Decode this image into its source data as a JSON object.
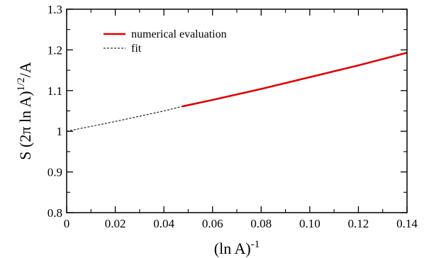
{
  "chart_data": {
    "type": "line",
    "title": "",
    "xlabel": {
      "base": "(ln A)",
      "sup": "-1"
    },
    "ylabel": {
      "pre": "S (2π ln A)",
      "sup": "1/2",
      "post": "/A"
    },
    "xlim": [
      0,
      0.14
    ],
    "ylim": [
      0.8,
      1.3
    ],
    "xticks": [
      "0",
      "0.02",
      "0.04",
      "0.06",
      "0.08",
      "0.10",
      "0.12",
      "0.14"
    ],
    "yticks": [
      "0.8",
      "0.9",
      "1",
      "1.1",
      "1.2",
      "1.3"
    ],
    "grid": false,
    "legend": "top-left",
    "series": [
      {
        "name": "numerical evaluation",
        "color": "#e00000",
        "style": "solid",
        "x": [
          0.0475,
          0.06,
          0.08,
          0.1,
          0.12,
          0.14
        ],
        "y": [
          1.061,
          1.077,
          1.104,
          1.133,
          1.162,
          1.193
        ]
      },
      {
        "name": "fit",
        "color": "#000000",
        "style": "dashed",
        "x": [
          0.0,
          0.01,
          0.02,
          0.03,
          0.04,
          0.0475,
          0.06,
          0.08,
          0.1,
          0.12,
          0.14
        ],
        "y": [
          1.0,
          1.012,
          1.024,
          1.037,
          1.05,
          1.061,
          1.077,
          1.104,
          1.133,
          1.162,
          1.193
        ]
      }
    ]
  }
}
